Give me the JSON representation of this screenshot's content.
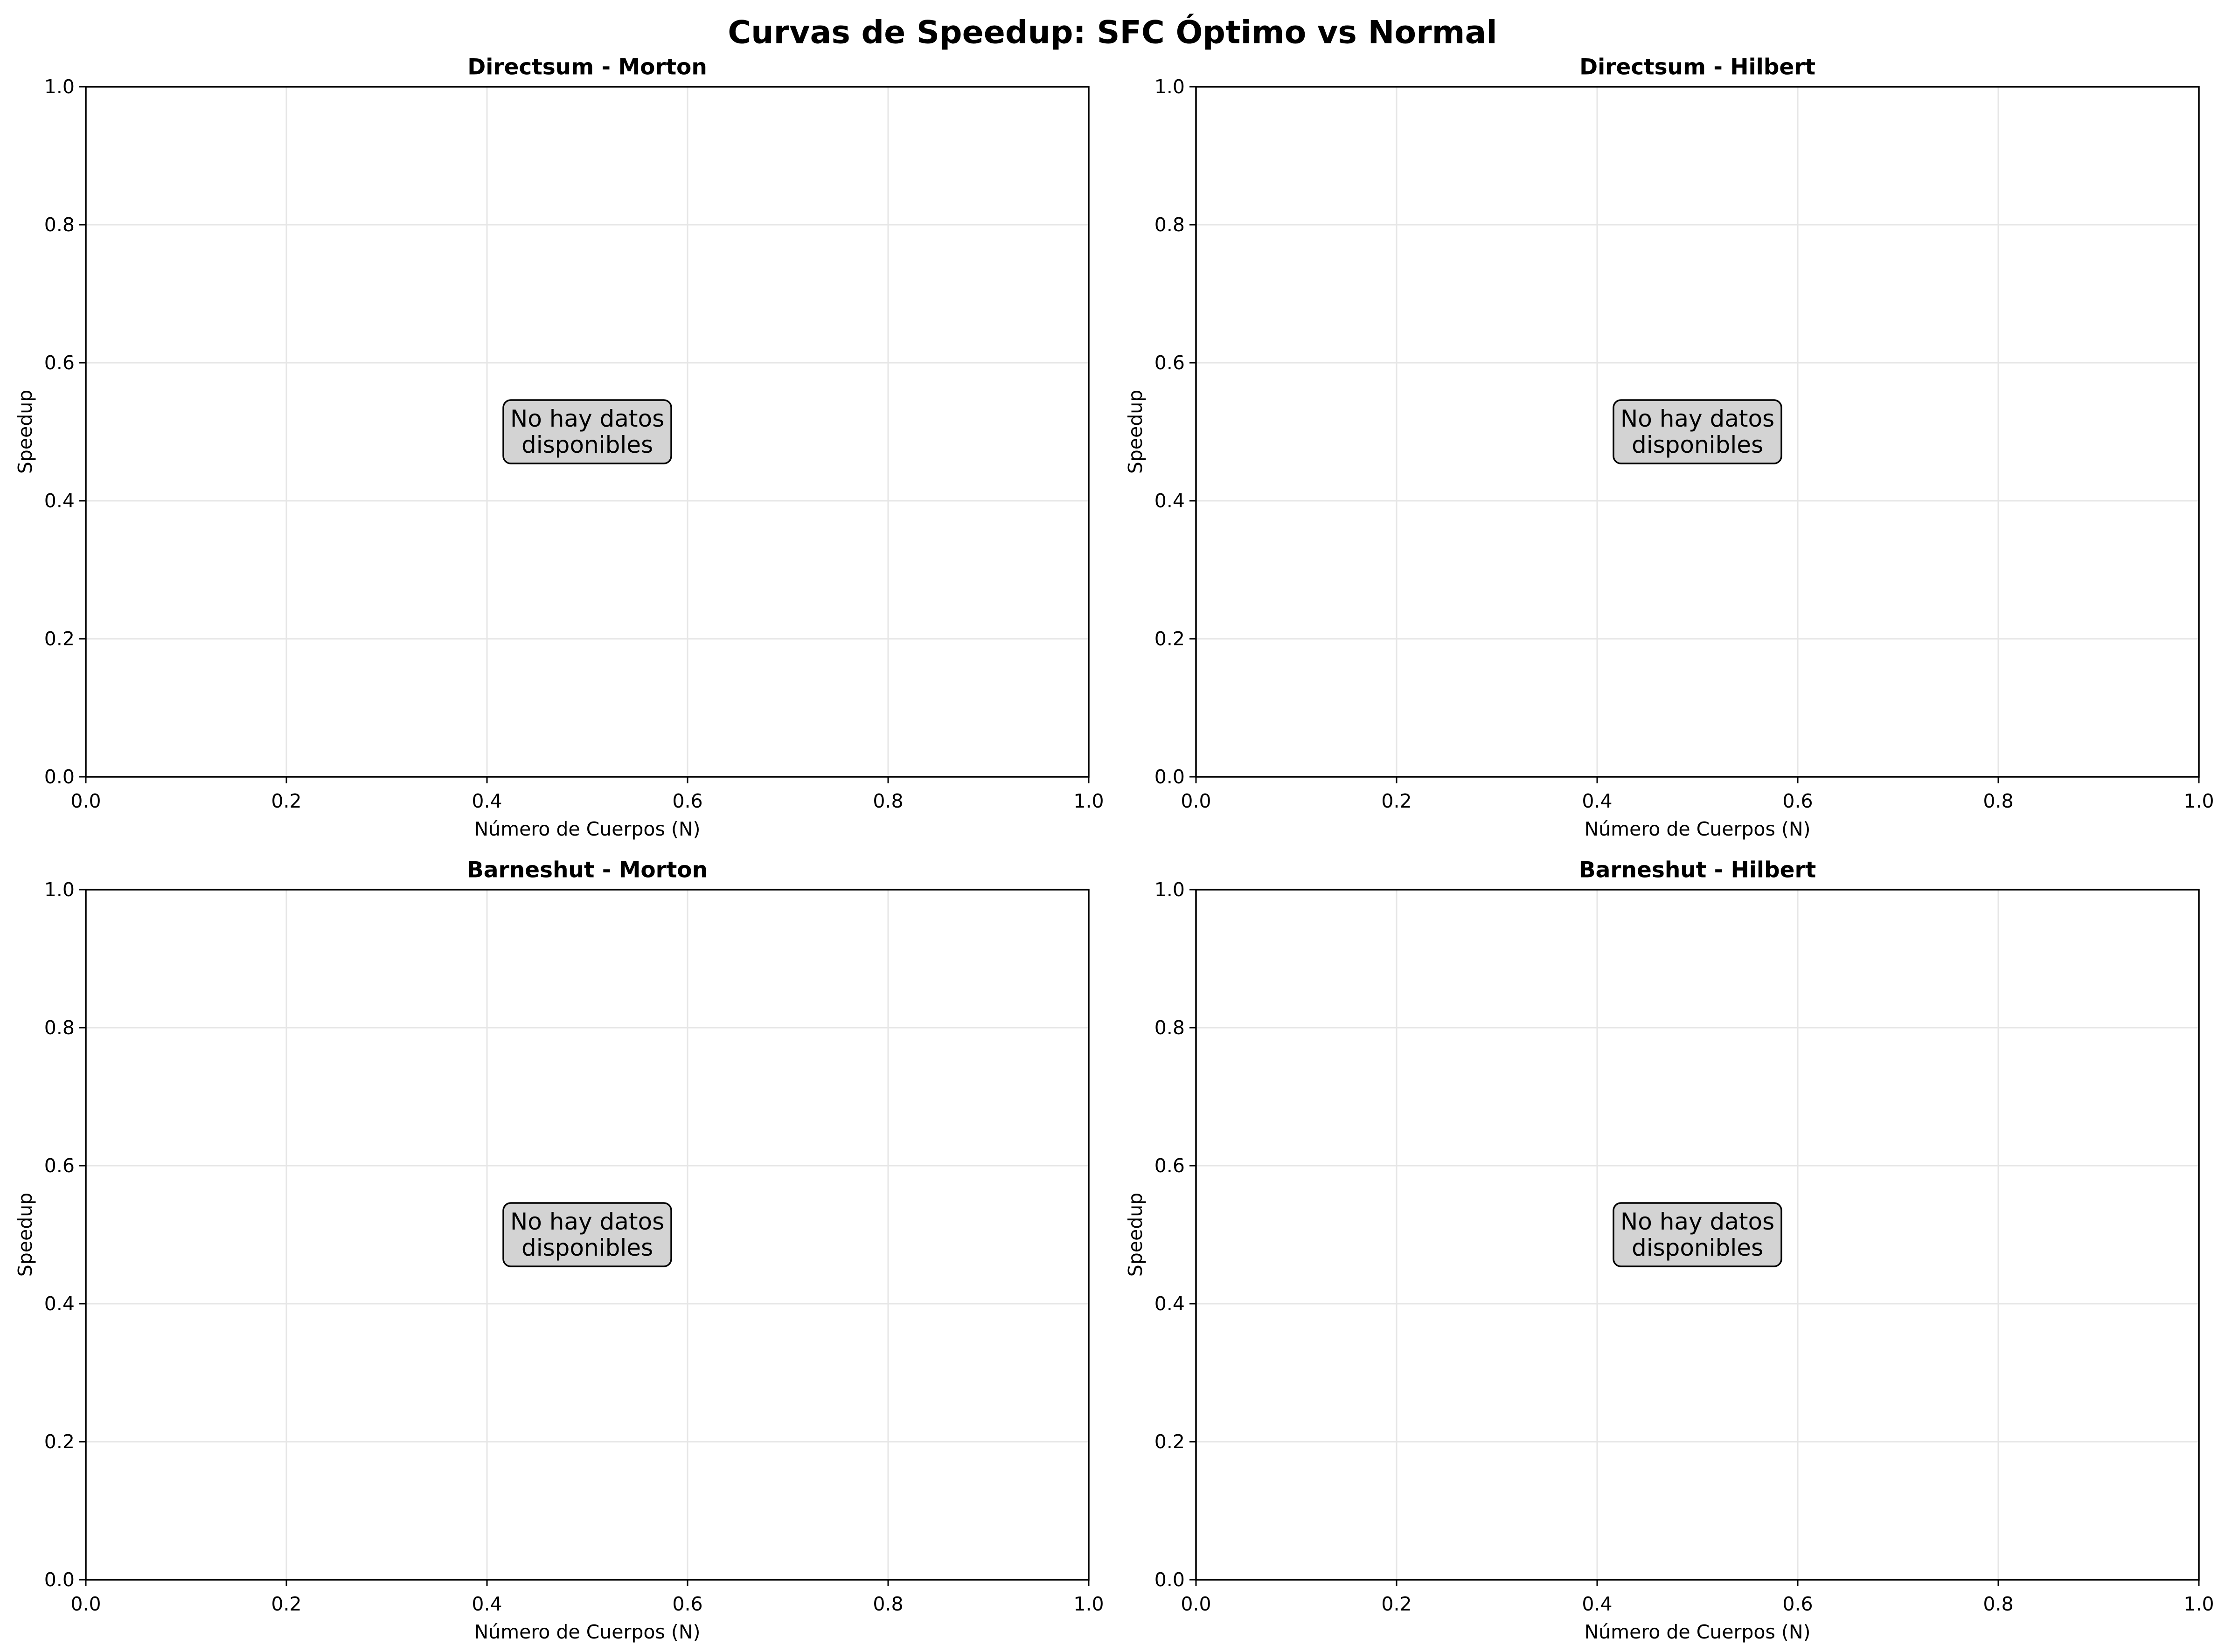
{
  "figure": {
    "suptitle": "Curvas de Speedup: SFC Óptimo vs Normal",
    "background": "#ffffff"
  },
  "colors": {
    "axes": "#000000",
    "grid": "#e6e6e6",
    "text": "#000000",
    "placeholder_box": "#d3d3d3"
  },
  "chart_data": [
    {
      "type": "line",
      "title": "Directsum - Morton",
      "xlabel": "Número de Cuerpos (N)",
      "ylabel": "Speedup",
      "xlim": [
        0,
        1
      ],
      "ylim": [
        0,
        1
      ],
      "xticks": [
        "0.0",
        "0.2",
        "0.4",
        "0.6",
        "0.8",
        "1.0"
      ],
      "yticks": [
        "0.0",
        "0.2",
        "0.4",
        "0.6",
        "0.8",
        "1.0"
      ],
      "grid": true,
      "series": [],
      "annotation": [
        "No hay datos",
        "disponibles"
      ]
    },
    {
      "type": "line",
      "title": "Directsum - Hilbert",
      "xlabel": "Número de Cuerpos (N)",
      "ylabel": "Speedup",
      "xlim": [
        0,
        1
      ],
      "ylim": [
        0,
        1
      ],
      "xticks": [
        "0.0",
        "0.2",
        "0.4",
        "0.6",
        "0.8",
        "1.0"
      ],
      "yticks": [
        "0.0",
        "0.2",
        "0.4",
        "0.6",
        "0.8",
        "1.0"
      ],
      "grid": true,
      "series": [],
      "annotation": [
        "No hay datos",
        "disponibles"
      ]
    },
    {
      "type": "line",
      "title": "Barneshut - Morton",
      "xlabel": "Número de Cuerpos (N)",
      "ylabel": "Speedup",
      "xlim": [
        0,
        1
      ],
      "ylim": [
        0,
        1
      ],
      "xticks": [
        "0.0",
        "0.2",
        "0.4",
        "0.6",
        "0.8",
        "1.0"
      ],
      "yticks": [
        "0.0",
        "0.2",
        "0.4",
        "0.6",
        "0.8",
        "1.0"
      ],
      "grid": true,
      "series": [],
      "annotation": [
        "No hay datos",
        "disponibles"
      ]
    },
    {
      "type": "line",
      "title": "Barneshut - Hilbert",
      "xlabel": "Número de Cuerpos (N)",
      "ylabel": "Speedup",
      "xlim": [
        0,
        1
      ],
      "ylim": [
        0,
        1
      ],
      "xticks": [
        "0.0",
        "0.2",
        "0.4",
        "0.6",
        "0.8",
        "1.0"
      ],
      "yticks": [
        "0.0",
        "0.2",
        "0.4",
        "0.6",
        "0.8",
        "1.0"
      ],
      "grid": true,
      "series": [],
      "annotation": [
        "No hay datos",
        "disponibles"
      ]
    }
  ]
}
